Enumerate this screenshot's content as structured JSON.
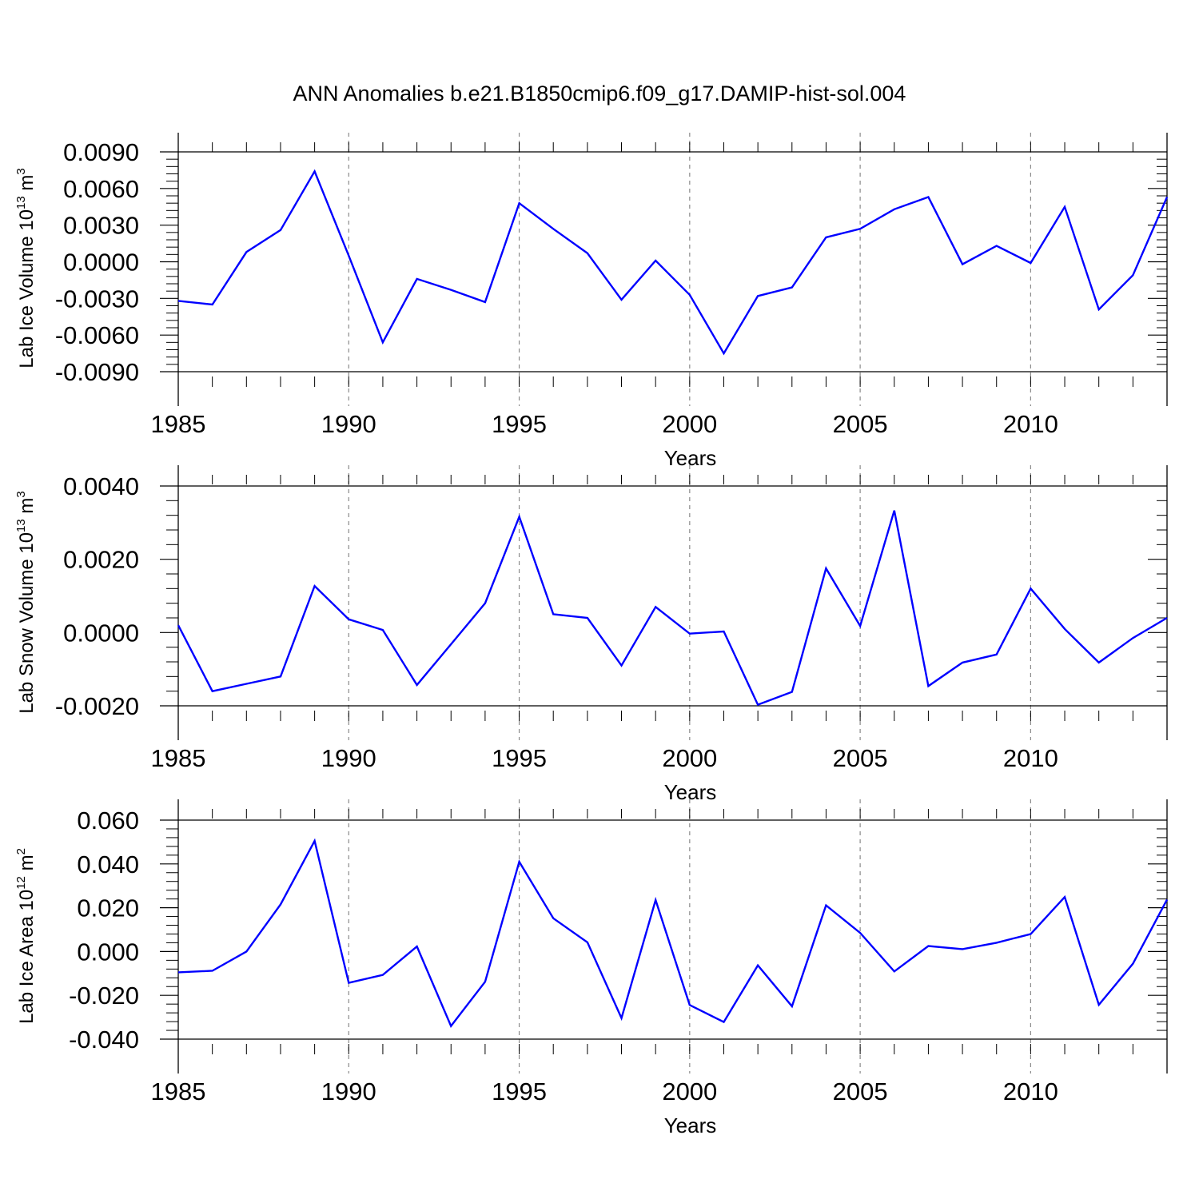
{
  "title": "ANN Anomalies b.e21.B1850cmip6.f09_g17.DAMIP-hist-sol.004",
  "chart_data": [
    {
      "type": "line",
      "xlabel": "Years",
      "ylabel": {
        "text": "Lab Ice Volume 10",
        "exp": "13",
        "unit": " m",
        "unit_exp": "3"
      },
      "xlim": [
        1985,
        2014
      ],
      "ylim": [
        -0.009,
        0.009
      ],
      "xticks": [
        "1985",
        "1990",
        "1995",
        "2000",
        "2005",
        "2010"
      ],
      "yticks": [
        "-0.0090",
        "-0.0060",
        "-0.0030",
        "0.0000",
        "0.0030",
        "0.0060",
        "0.0090"
      ],
      "grid": "dashed vertical lines at labeled years",
      "color": "#0000ff",
      "x": [
        1985,
        1986,
        1987,
        1988,
        1989,
        1990,
        1991,
        1992,
        1993,
        1994,
        1995,
        1996,
        1997,
        1998,
        1999,
        2000,
        2001,
        2002,
        2003,
        2004,
        2005,
        2006,
        2007,
        2008,
        2009,
        2010,
        2011,
        2012,
        2013,
        2014
      ],
      "values": [
        -0.0032,
        -0.0035,
        0.0008,
        0.0026,
        0.0074,
        0.0005,
        -0.0066,
        -0.0014,
        -0.0023,
        -0.0033,
        0.0048,
        0.0027,
        0.0007,
        -0.0031,
        0.0001,
        -0.0027,
        -0.0075,
        -0.0028,
        -0.0021,
        0.002,
        0.0027,
        0.0043,
        0.0053,
        -0.0002,
        0.0013,
        -0.0001,
        0.0045,
        -0.0039,
        -0.0011,
        0.0053
      ]
    },
    {
      "type": "line",
      "xlabel": "Years",
      "ylabel": {
        "text": "Lab Snow Volume 10",
        "exp": "13",
        "unit": " m",
        "unit_exp": "3"
      },
      "xlim": [
        1985,
        2014
      ],
      "ylim": [
        -0.002,
        0.004
      ],
      "xticks": [
        "1985",
        "1990",
        "1995",
        "2000",
        "2005",
        "2010"
      ],
      "yticks": [
        "-0.0020",
        "0.0000",
        "0.0020",
        "0.0040"
      ],
      "grid": "dashed vertical lines at labeled years",
      "color": "#0000ff",
      "x": [
        1985,
        1986,
        1987,
        1988,
        1989,
        1990,
        1991,
        1992,
        1993,
        1994,
        1995,
        1996,
        1997,
        1998,
        1999,
        2000,
        2001,
        2002,
        2003,
        2004,
        2005,
        2006,
        2007,
        2008,
        2009,
        2010,
        2011,
        2012,
        2013,
        2014
      ],
      "values": [
        0.0002,
        -0.0016,
        -0.0014,
        -0.0012,
        0.00127,
        0.00036,
        7e-05,
        -0.00143,
        -0.00032,
        0.0008,
        0.00316,
        0.0005,
        0.0004,
        -0.0009,
        0.0007,
        -3e-05,
        3e-05,
        -0.00197,
        -0.00162,
        0.00175,
        0.00018,
        0.00333,
        -0.00146,
        -0.00082,
        -0.0006,
        0.0012,
        0.0001,
        -0.00082,
        -0.00015,
        0.0004
      ]
    },
    {
      "type": "line",
      "xlabel": "Years",
      "ylabel": {
        "text": "Lab Ice Area 10",
        "exp": "12",
        "unit": " m",
        "unit_exp": "2"
      },
      "xlim": [
        1985,
        2014
      ],
      "ylim": [
        -0.04,
        0.06
      ],
      "xticks": [
        "1985",
        "1990",
        "1995",
        "2000",
        "2005",
        "2010"
      ],
      "yticks": [
        "-0.040",
        "-0.020",
        "0.000",
        "0.020",
        "0.040",
        "0.060"
      ],
      "grid": "dashed vertical lines at labeled years",
      "color": "#0000ff",
      "x": [
        1985,
        1986,
        1987,
        1988,
        1989,
        1990,
        1991,
        1992,
        1993,
        1994,
        1995,
        1996,
        1997,
        1998,
        1999,
        2000,
        2001,
        2002,
        2003,
        2004,
        2005,
        2006,
        2007,
        2008,
        2009,
        2010,
        2011,
        2012,
        2013,
        2014
      ],
      "values": [
        -0.0095,
        -0.0088,
        0.0,
        0.0215,
        0.0505,
        -0.0143,
        -0.0107,
        0.0023,
        -0.034,
        -0.0138,
        0.041,
        0.0152,
        0.0042,
        -0.0304,
        0.0235,
        -0.0244,
        -0.0322,
        -0.0063,
        -0.025,
        0.0211,
        0.0085,
        -0.0091,
        0.0025,
        0.0011,
        0.004,
        0.008,
        0.0249,
        -0.0243,
        -0.0056,
        0.0237
      ]
    }
  ]
}
